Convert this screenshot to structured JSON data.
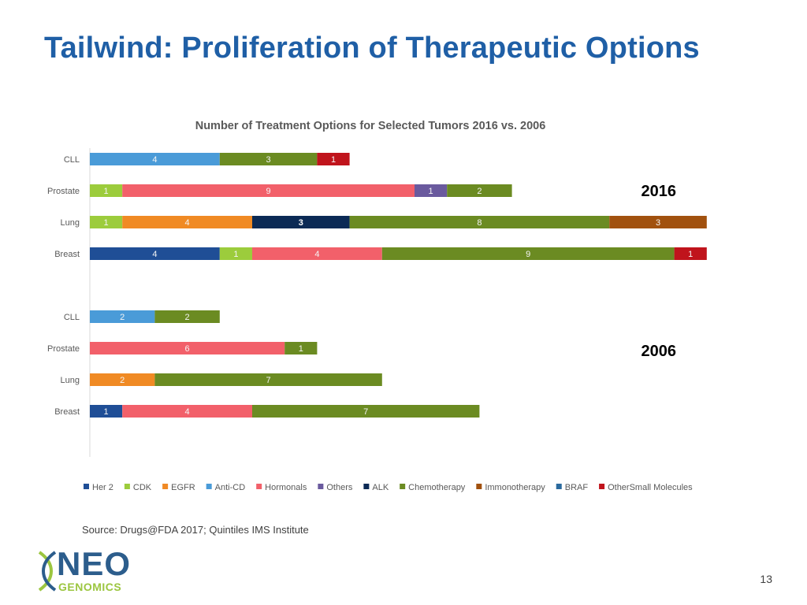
{
  "slide": {
    "title": "Tailwind: Proliferation of Therapeutic Options",
    "source": "Source: Drugs@FDA 2017; Quintiles IMS Institute",
    "logo_main": "NEO",
    "logo_sub": "GENOMICS",
    "page_number": "13"
  },
  "chart_data": {
    "type": "bar",
    "orientation": "horizontal",
    "stacked": true,
    "title": "Number of Treatment Options for Selected Tumors 2016 vs. 2006",
    "categories_2016": [
      "CLL",
      "Prostate",
      "Lung",
      "Breast"
    ],
    "categories_2006": [
      "CLL",
      "Prostate",
      "Lung",
      "Breast"
    ],
    "group_labels": [
      "2016",
      "2006"
    ],
    "legend_position": "bottom",
    "series": [
      {
        "name": "Her 2",
        "color": "#1f4e96",
        "values_2016": [
          0,
          0,
          0,
          4
        ],
        "values_2006": [
          0,
          0,
          0,
          1
        ]
      },
      {
        "name": "CDK",
        "color": "#9ccc3c",
        "values_2016": [
          0,
          1,
          1,
          1
        ],
        "values_2006": [
          0,
          0,
          0,
          0
        ]
      },
      {
        "name": "EGFR",
        "color": "#f08a24",
        "values_2016": [
          0,
          0,
          4,
          0
        ],
        "values_2006": [
          0,
          0,
          2,
          0
        ]
      },
      {
        "name": "Anti-CD",
        "color": "#4a9bd8",
        "values_2016": [
          4,
          0,
          0,
          0
        ],
        "values_2006": [
          2,
          0,
          0,
          0
        ]
      },
      {
        "name": "Hormonals",
        "color": "#f2606a",
        "values_2016": [
          0,
          9,
          0,
          4
        ],
        "values_2006": [
          0,
          6,
          0,
          4
        ]
      },
      {
        "name": "Others",
        "color": "#6a5a9e",
        "values_2016": [
          0,
          1,
          0,
          0
        ],
        "values_2006": [
          0,
          0,
          0,
          0
        ]
      },
      {
        "name": "ALK",
        "color": "#0b2a55",
        "values_2016": [
          0,
          0,
          3,
          0
        ],
        "values_2006": [
          0,
          0,
          0,
          0
        ]
      },
      {
        "name": "Chemotherapy",
        "color": "#6b8b22",
        "values_2016": [
          3,
          2,
          8,
          9
        ],
        "values_2006": [
          2,
          1,
          7,
          7
        ]
      },
      {
        "name": "Immonotherapy",
        "color": "#a1510e",
        "values_2016": [
          0,
          0,
          3,
          0
        ],
        "values_2006": [
          0,
          0,
          0,
          0
        ]
      },
      {
        "name": "BRAF",
        "color": "#2b6a9e",
        "values_2016": [
          0,
          0,
          0,
          0
        ],
        "values_2006": [
          0,
          0,
          0,
          0
        ]
      },
      {
        "name": "OtherSmall Molecules",
        "color": "#c0141c",
        "values_2016": [
          1,
          0,
          0,
          1
        ],
        "values_2006": [
          0,
          0,
          0,
          0
        ]
      }
    ]
  }
}
